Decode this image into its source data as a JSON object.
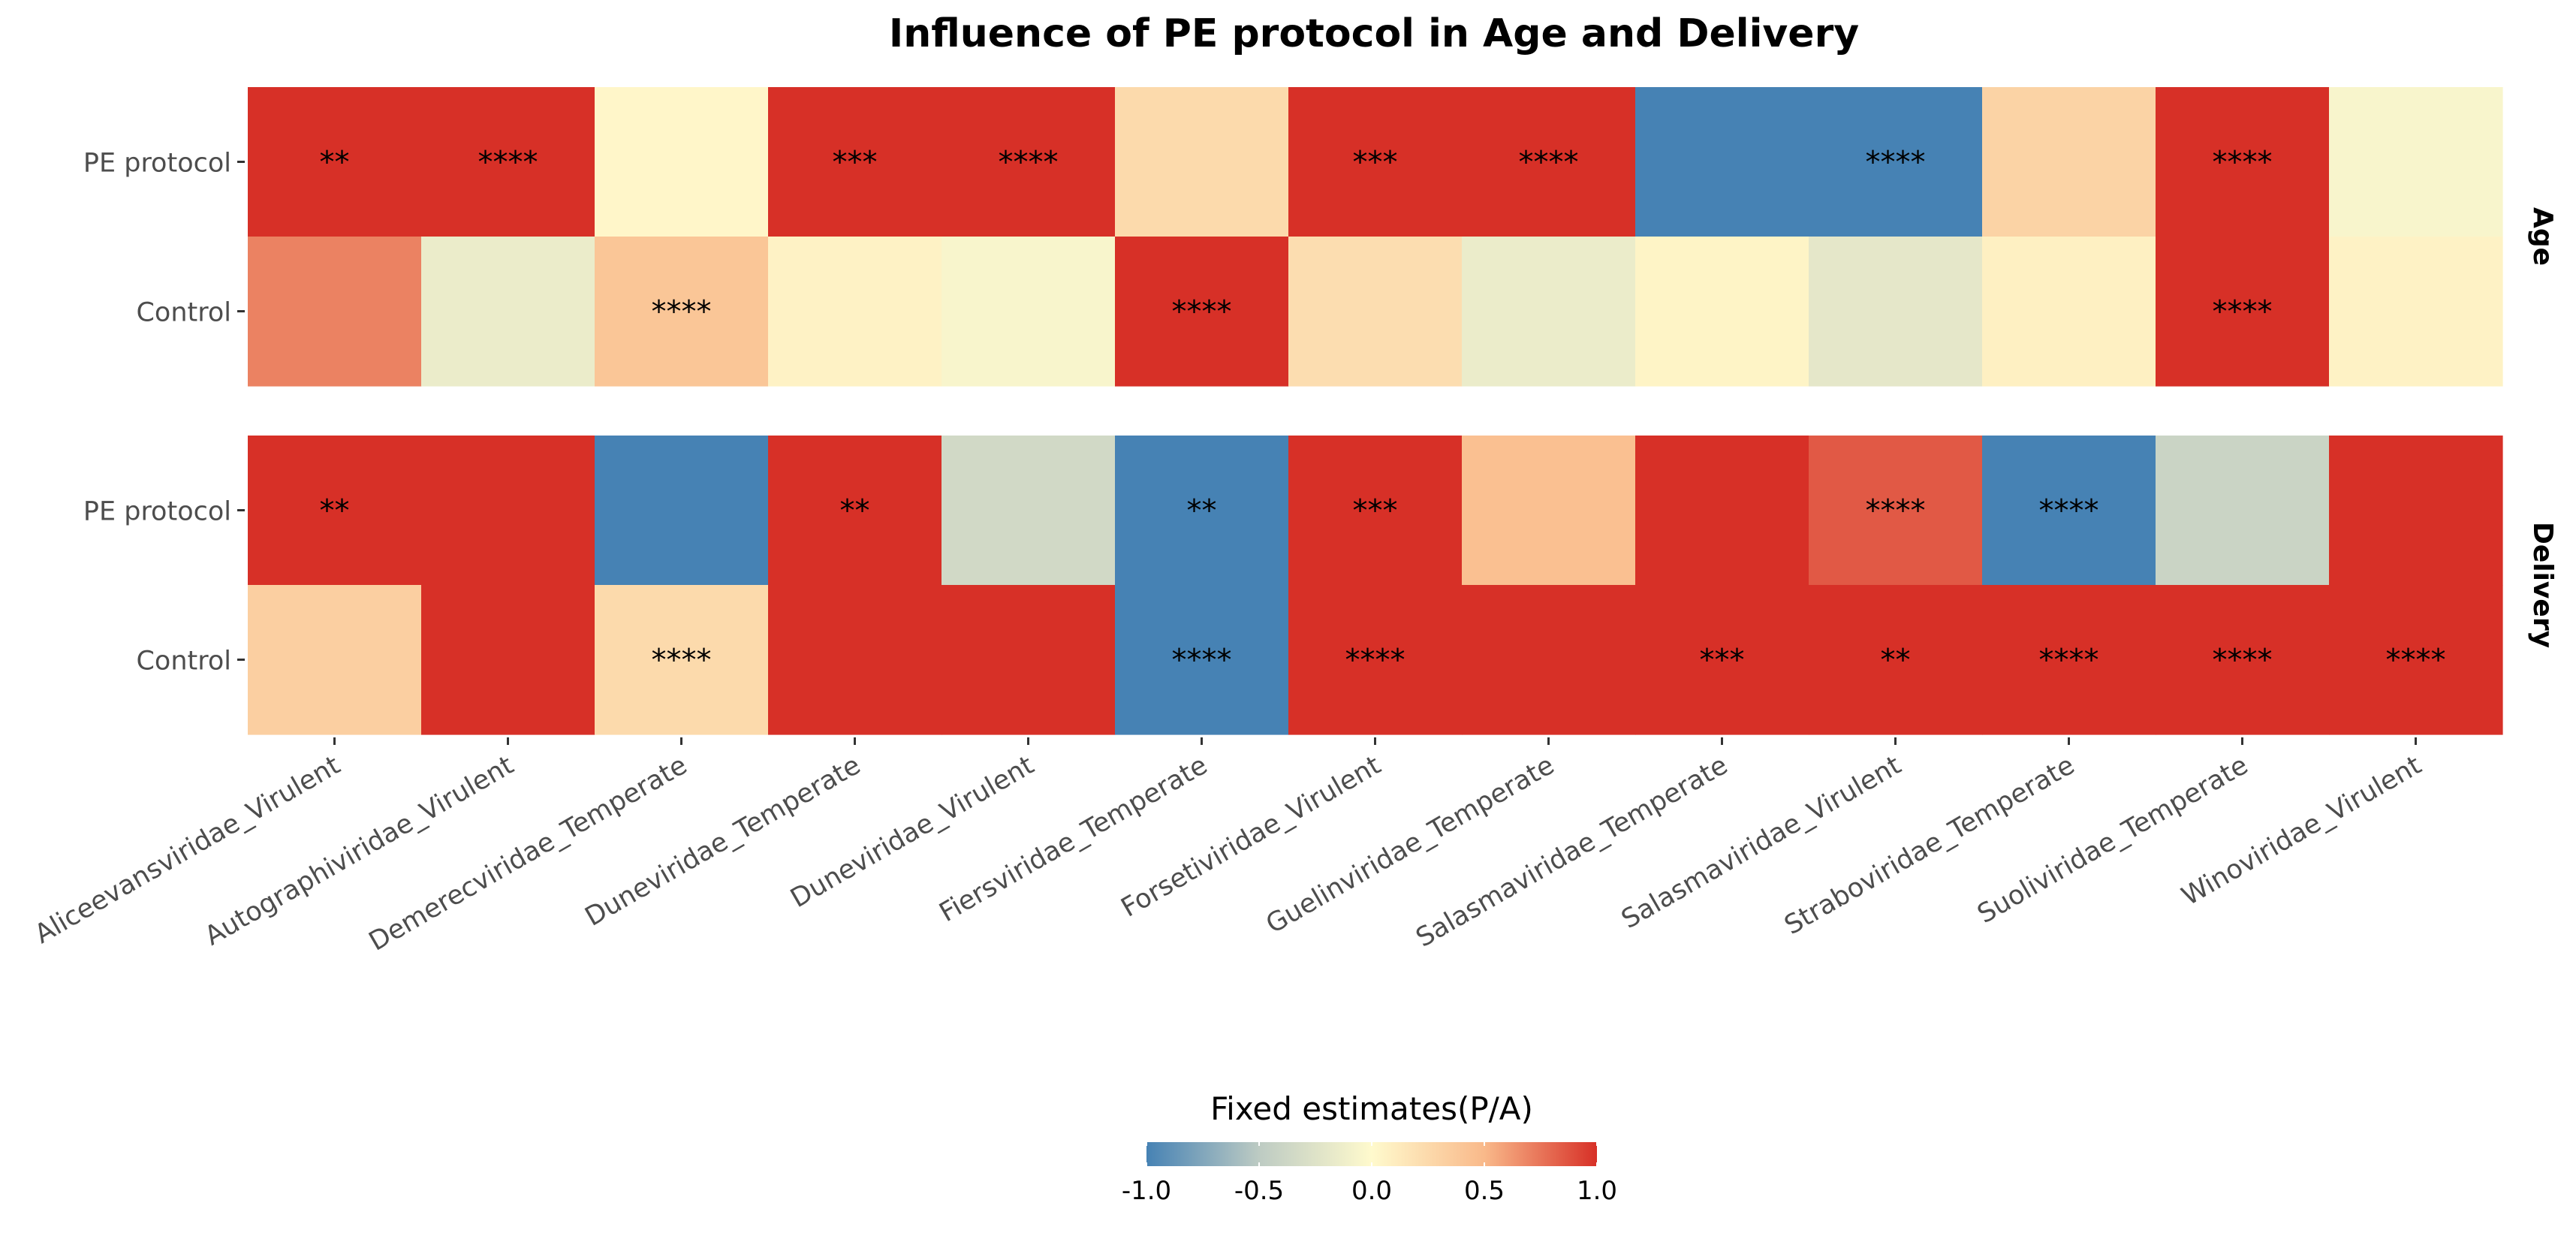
{
  "chart_data": {
    "type": "heatmap",
    "title": "Influence of PE protocol in Age and Delivery",
    "columns": [
      "Aliceevansviridae_Virulent",
      "Autographiviridae_Virulent",
      "Demerecviridae_Temperate",
      "Duneviridae_Temperate",
      "Duneviridae_Virulent",
      "Fiersviridae_Temperate",
      "Forsetiviridae_Virulent",
      "Guelinviridae_Temperate",
      "Salasmaviridae_Temperate",
      "Salasmaviridae_Virulent",
      "Straboviridae_Temperate",
      "Suoliviridae_Temperate",
      "Winoviridae_Virulent"
    ],
    "rows": [
      "PE protocol",
      "Control"
    ],
    "facets": [
      {
        "label": "Age",
        "values": [
          [
            1.0,
            1.0,
            0.03,
            1.0,
            1.0,
            0.25,
            1.0,
            1.0,
            -1.0,
            -1.0,
            0.3,
            1.0,
            -0.05
          ],
          [
            0.7,
            -0.15,
            0.4,
            0.06,
            -0.05,
            1.0,
            0.22,
            -0.15,
            0.05,
            -0.2,
            0.08,
            1.0,
            0.06
          ]
        ],
        "significance": [
          [
            "**",
            "****",
            "",
            "***",
            "****",
            "",
            "***",
            "****",
            "",
            "****",
            "",
            "****",
            ""
          ],
          [
            "",
            "",
            "****",
            "",
            "",
            "****",
            "",
            "",
            "",
            "",
            "",
            "****",
            ""
          ]
        ]
      },
      {
        "label": "Delivery",
        "values": [
          [
            1.0,
            1.0,
            -1.0,
            1.0,
            -0.35,
            -1.0,
            1.0,
            0.45,
            1.0,
            0.85,
            -1.0,
            -0.4,
            1.0
          ],
          [
            0.33,
            1.0,
            0.25,
            1.0,
            1.0,
            -1.0,
            1.0,
            1.0,
            1.0,
            1.0,
            1.0,
            1.0,
            1.0
          ]
        ],
        "significance": [
          [
            "**",
            "",
            "",
            "**",
            "",
            "**",
            "***",
            "",
            "",
            "****",
            "****",
            "",
            ""
          ],
          [
            "",
            "",
            "****",
            "",
            "",
            "****",
            "****",
            "",
            "***",
            "**",
            "****",
            "****",
            "****"
          ]
        ]
      }
    ],
    "legend": {
      "title": "Fixed estimates(P/A)",
      "ticks": [
        "-1.0",
        "-0.5",
        "0.0",
        "0.5",
        "1.0"
      ],
      "range": [
        -1.0,
        1.0
      ],
      "placement": "bottom"
    },
    "colors": {
      "low": "#4682B4",
      "low_mid": "#BDCBC3",
      "mid": "#FFFACD",
      "high_mid": "#F9B98A",
      "high": "#D73027"
    }
  }
}
